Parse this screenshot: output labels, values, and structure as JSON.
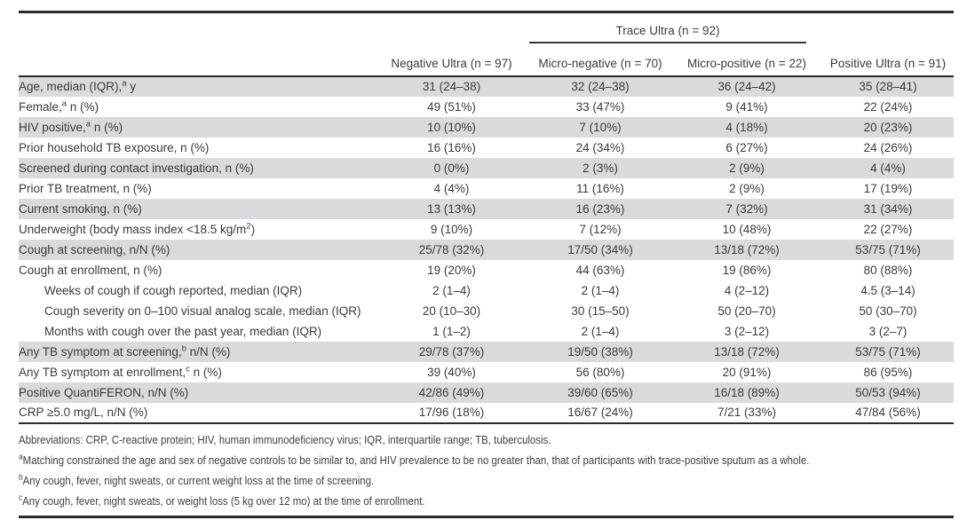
{
  "colors": {
    "row_shading": "#d9dadb",
    "rule": "#2a2a2a",
    "text": "#3b3b3b",
    "footnote_text": "#3f3f3f"
  },
  "table": {
    "group_header": {
      "trace_label": "Trace Ultra (n = 92)"
    },
    "columns": [
      "Negative Ultra (n = 97)",
      "Micro-negative (n = 70)",
      "Micro-positive (n = 22)",
      "Positive Ultra (n = 91)"
    ],
    "rows": [
      {
        "pre": "Age, median (IQR),",
        "sup": "a",
        "post": " y",
        "indent": false,
        "shaded": true,
        "values": [
          "31 (24–38)",
          "32 (24–38)",
          "36 (24–42)",
          "35 (28–41)"
        ]
      },
      {
        "pre": "Female,",
        "sup": "a",
        "post": " n (%)",
        "indent": false,
        "shaded": false,
        "values": [
          "49 (51%)",
          "33 (47%)",
          "9 (41%)",
          "22 (24%)"
        ]
      },
      {
        "pre": "HIV positive,",
        "sup": "a",
        "post": " n (%)",
        "indent": false,
        "shaded": true,
        "values": [
          "10 (10%)",
          "7 (10%)",
          "4 (18%)",
          "20 (23%)"
        ]
      },
      {
        "pre": "Prior household TB exposure, n (%)",
        "sup": "",
        "post": "",
        "indent": false,
        "shaded": false,
        "values": [
          "16 (16%)",
          "24 (34%)",
          "6 (27%)",
          "24 (26%)"
        ]
      },
      {
        "pre": "Screened during contact investigation, n (%)",
        "sup": "",
        "post": "",
        "indent": false,
        "shaded": true,
        "values": [
          "0 (0%)",
          "2 (3%)",
          "2 (9%)",
          "4 (4%)"
        ]
      },
      {
        "pre": "Prior TB treatment, n (%)",
        "sup": "",
        "post": "",
        "indent": false,
        "shaded": false,
        "values": [
          "4 (4%)",
          "11 (16%)",
          "2 (9%)",
          "17 (19%)"
        ]
      },
      {
        "pre": "Current smoking, n (%)",
        "sup": "",
        "post": "",
        "indent": false,
        "shaded": true,
        "values": [
          "13 (13%)",
          "16 (23%)",
          "7 (32%)",
          "31 (34%)"
        ]
      },
      {
        "pre": "Underweight (body mass index <18.5 kg/m",
        "sup": "2",
        "post": ")",
        "indent": false,
        "shaded": false,
        "values": [
          "9 (10%)",
          "7 (12%)",
          "10 (48%)",
          "22 (27%)"
        ]
      },
      {
        "pre": "Cough at screening, n/N (%)",
        "sup": "",
        "post": "",
        "indent": false,
        "shaded": true,
        "values": [
          "25/78 (32%)",
          "17/50 (34%)",
          "13/18 (72%)",
          "53/75 (71%)"
        ]
      },
      {
        "pre": "Cough at enrollment, n (%)",
        "sup": "",
        "post": "",
        "indent": false,
        "shaded": false,
        "values": [
          "19 (20%)",
          "44 (63%)",
          "19 (86%)",
          "80 (88%)"
        ]
      },
      {
        "pre": "Weeks of cough if cough reported, median (IQR)",
        "sup": "",
        "post": "",
        "indent": true,
        "shaded": false,
        "values": [
          "2 (1–4)",
          "2 (1–4)",
          "4 (2–12)",
          "4.5 (3–14)"
        ]
      },
      {
        "pre": "Cough severity on 0–100 visual analog scale, median (IQR)",
        "sup": "",
        "post": "",
        "indent": true,
        "shaded": false,
        "values": [
          "20 (10–30)",
          "30 (15–50)",
          "50 (20–70)",
          "50 (30–70)"
        ]
      },
      {
        "pre": "Months with cough over the past year, median (IQR)",
        "sup": "",
        "post": "",
        "indent": true,
        "shaded": false,
        "values": [
          "1 (1–2)",
          "2 (1–4)",
          "3 (2–12)",
          "3 (2–7)"
        ]
      },
      {
        "pre": "Any TB symptom at screening,",
        "sup": "b",
        "post": " n/N (%)",
        "indent": false,
        "shaded": true,
        "values": [
          "29/78 (37%)",
          "19/50 (38%)",
          "13/18 (72%)",
          "53/75 (71%)"
        ]
      },
      {
        "pre": "Any TB symptom at enrollment,",
        "sup": "c",
        "post": " n (%)",
        "indent": false,
        "shaded": false,
        "values": [
          "39 (40%)",
          "56 (80%)",
          "20 (91%)",
          "86 (95%)"
        ]
      },
      {
        "pre": "Positive QuantiFERON, n/N (%)",
        "sup": "",
        "post": "",
        "indent": false,
        "shaded": true,
        "values": [
          "42/86 (49%)",
          "39/60 (65%)",
          "16/18 (89%)",
          "50/53 (94%)"
        ]
      },
      {
        "pre": "CRP ≥5.0 mg/L, n/N (%)",
        "sup": "",
        "post": "",
        "indent": false,
        "shaded": false,
        "values": [
          "17/96 (18%)",
          "16/67 (24%)",
          "7/21 (33%)",
          "47/84 (56%)"
        ]
      }
    ]
  },
  "footnotes": {
    "abbreviations": "Abbreviations: CRP, C-reactive protein; HIV, human immunodeficiency virus; IQR, interquartile range; TB, tuberculosis.",
    "notes": [
      {
        "sup": "a",
        "text": "Matching constrained the age and sex of negative controls to be similar to, and HIV prevalence to be no greater than, that of participants with trace-positive sputum as a whole."
      },
      {
        "sup": "b",
        "text": "Any cough, fever, night sweats, or current weight loss at the time of screening."
      },
      {
        "sup": "c",
        "text": "Any cough, fever, night sweats, or weight loss (5 kg over 12 mo) at the time of enrollment."
      }
    ]
  }
}
